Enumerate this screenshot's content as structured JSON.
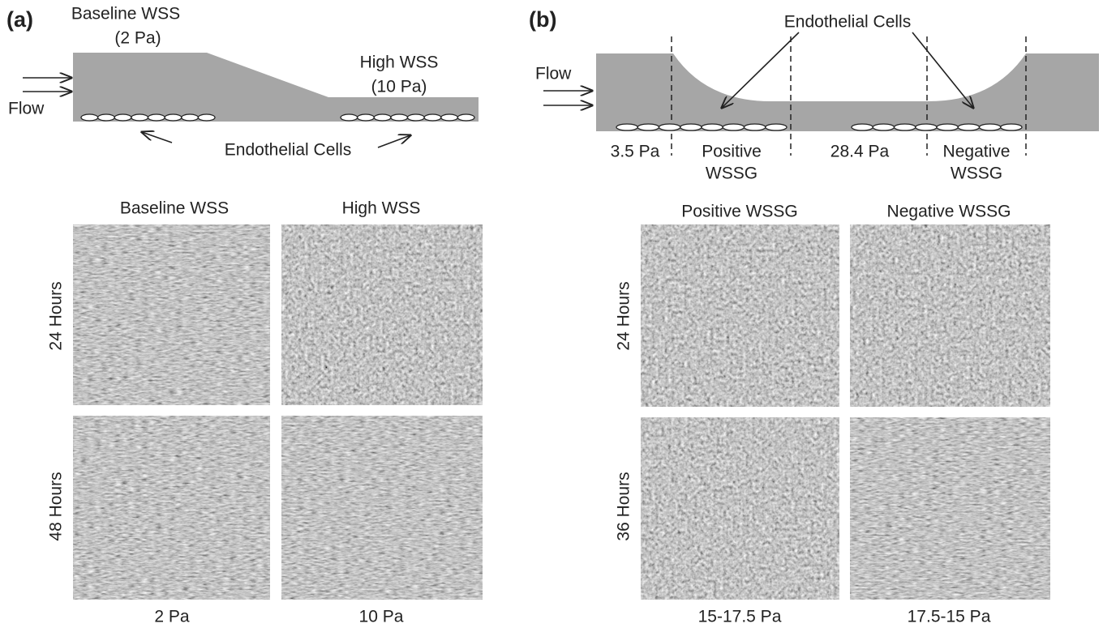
{
  "panels": [
    {
      "label": "(a)",
      "diagram": {
        "baseline_title": "Baseline WSS",
        "baseline_value": "(2 Pa)",
        "high_title": "High WSS",
        "high_value": "(10 Pa)",
        "flow": "Flow",
        "cells": "Endothelial Cells"
      },
      "columns": [
        "Baseline WSS",
        "High WSS"
      ],
      "rows": [
        "24 Hours",
        "48 Hours"
      ],
      "footers": [
        "2 Pa",
        "10 Pa"
      ]
    },
    {
      "label": "(b)",
      "diagram": {
        "flow": "Flow",
        "cells": "Endothelial Cells",
        "regions": [
          [
            "3.5 Pa"
          ],
          [
            "Positive",
            "WSSG"
          ],
          [
            "28.4 Pa"
          ],
          [
            "Negative",
            "WSSG"
          ]
        ]
      },
      "columns": [
        "Positive WSSG",
        "Negative WSSG"
      ],
      "rows": [
        "24 Hours",
        "36 Hours"
      ],
      "footers": [
        "15-17.5 Pa",
        "17.5-15 Pa"
      ]
    }
  ]
}
